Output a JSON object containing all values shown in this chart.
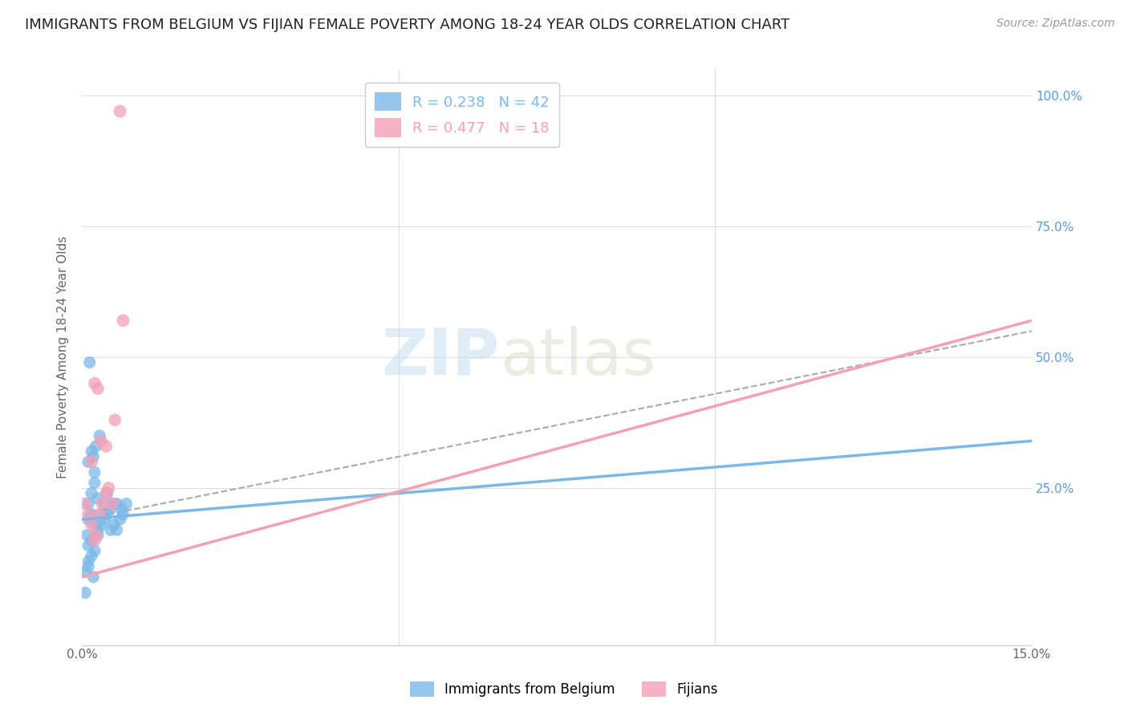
{
  "title": "IMMIGRANTS FROM BELGIUM VS FIJIAN FEMALE POVERTY AMONG 18-24 YEAR OLDS CORRELATION CHART",
  "source": "Source: ZipAtlas.com",
  "ylabel": "Female Poverty Among 18-24 Year Olds",
  "legend_blue_r": "R = 0.238",
  "legend_blue_n": "N = 42",
  "legend_pink_r": "R = 0.477",
  "legend_pink_n": "N = 18",
  "legend_label_blue": "Immigrants from Belgium",
  "legend_label_pink": "Fijians",
  "watermark_zip": "ZIP",
  "watermark_atlas": "atlas",
  "blue_color": "#7bb8e8",
  "pink_color": "#f4a0b5",
  "blue_scatter": [
    [
      0.1,
      22
    ],
    [
      0.15,
      24
    ],
    [
      0.2,
      26
    ],
    [
      0.1,
      19
    ],
    [
      0.15,
      20
    ],
    [
      0.2,
      18
    ],
    [
      0.25,
      17
    ],
    [
      0.15,
      15
    ],
    [
      0.1,
      14
    ],
    [
      0.2,
      13
    ],
    [
      0.15,
      12
    ],
    [
      0.1,
      11
    ],
    [
      0.25,
      16
    ],
    [
      0.3,
      18
    ],
    [
      0.35,
      22
    ],
    [
      0.4,
      24
    ],
    [
      0.3,
      20
    ],
    [
      0.2,
      28
    ],
    [
      0.25,
      23
    ],
    [
      0.35,
      19
    ],
    [
      0.4,
      20
    ],
    [
      0.45,
      21
    ],
    [
      0.5,
      22
    ],
    [
      0.55,
      22
    ],
    [
      0.6,
      19
    ],
    [
      0.65,
      20
    ],
    [
      0.7,
      22
    ],
    [
      0.45,
      17
    ],
    [
      0.5,
      18
    ],
    [
      0.55,
      17
    ],
    [
      0.12,
      49
    ],
    [
      0.08,
      16
    ],
    [
      0.15,
      32
    ],
    [
      0.18,
      31
    ],
    [
      0.1,
      30
    ],
    [
      0.28,
      35
    ],
    [
      0.22,
      33
    ],
    [
      0.05,
      9
    ],
    [
      0.1,
      10
    ],
    [
      0.62,
      21
    ],
    [
      0.05,
      5
    ],
    [
      0.18,
      8
    ]
  ],
  "pink_scatter": [
    [
      0.05,
      22
    ],
    [
      0.1,
      20
    ],
    [
      0.15,
      18
    ],
    [
      0.2,
      45
    ],
    [
      0.25,
      44
    ],
    [
      0.28,
      20
    ],
    [
      0.32,
      22
    ],
    [
      0.38,
      24
    ],
    [
      0.42,
      25
    ],
    [
      0.48,
      22
    ],
    [
      0.2,
      15
    ],
    [
      0.22,
      16
    ],
    [
      0.15,
      30
    ],
    [
      0.3,
      34
    ],
    [
      0.38,
      33
    ],
    [
      0.6,
      97
    ],
    [
      0.52,
      38
    ],
    [
      0.65,
      57
    ]
  ],
  "blue_line": [
    0.0,
    15.0,
    19.0,
    34.0
  ],
  "pink_line": [
    0.0,
    15.0,
    8.0,
    57.0
  ],
  "dash_line": [
    0.0,
    15.0,
    19.0,
    55.0
  ],
  "xlim": [
    0,
    15
  ],
  "ylim": [
    -5,
    105
  ],
  "ytick_vals": [
    25,
    50,
    75,
    100
  ],
  "ytick_labels": [
    "25.0%",
    "50.0%",
    "75.0%",
    "100.0%"
  ],
  "xtick_vals": [
    0,
    15
  ],
  "xtick_labels": [
    "0.0%",
    "15.0%"
  ],
  "title_fontsize": 13,
  "source_fontsize": 10,
  "axis_label_fontsize": 11,
  "tick_fontsize": 11
}
